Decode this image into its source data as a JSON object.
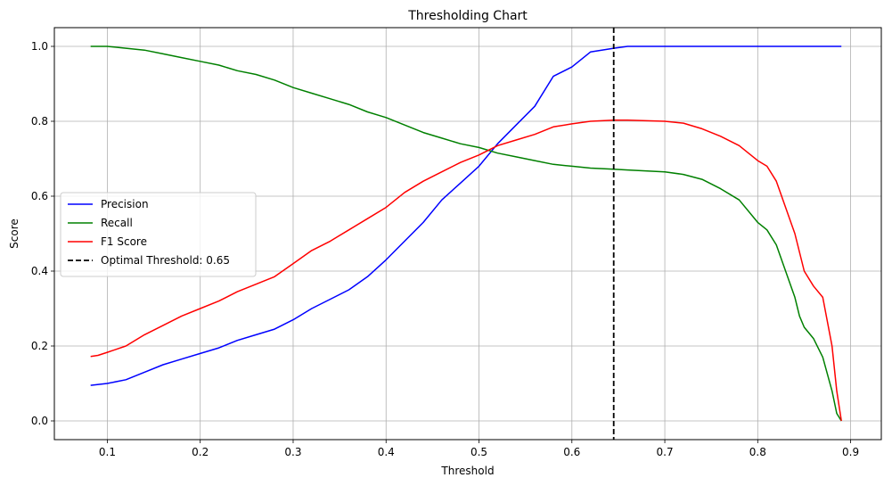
{
  "chart_data": {
    "type": "line",
    "title": "Thresholding Chart",
    "xlabel": "Threshold",
    "ylabel": "Score",
    "xlim": [
      0.043,
      0.933
    ],
    "ylim": [
      -0.05,
      1.05
    ],
    "x_ticks": [
      0.1,
      0.2,
      0.3,
      0.4,
      0.5,
      0.6,
      0.7,
      0.8,
      0.9
    ],
    "y_ticks": [
      0.0,
      0.2,
      0.4,
      0.6,
      0.8,
      1.0
    ],
    "x_tick_labels": [
      "0.1",
      "0.2",
      "0.3",
      "0.4",
      "0.5",
      "0.6",
      "0.7",
      "0.8",
      "0.9"
    ],
    "y_tick_labels": [
      "0.0",
      "0.2",
      "0.4",
      "0.6",
      "0.8",
      "1.0"
    ],
    "grid": true,
    "legend_position": "center-left",
    "series": [
      {
        "name": "Precision",
        "color": "#0000ff",
        "points": [
          [
            0.082,
            0.095
          ],
          [
            0.1,
            0.1
          ],
          [
            0.12,
            0.11
          ],
          [
            0.14,
            0.13
          ],
          [
            0.16,
            0.15
          ],
          [
            0.18,
            0.165
          ],
          [
            0.2,
            0.18
          ],
          [
            0.22,
            0.195
          ],
          [
            0.24,
            0.215
          ],
          [
            0.26,
            0.23
          ],
          [
            0.28,
            0.245
          ],
          [
            0.3,
            0.27
          ],
          [
            0.32,
            0.3
          ],
          [
            0.34,
            0.325
          ],
          [
            0.36,
            0.35
          ],
          [
            0.38,
            0.385
          ],
          [
            0.4,
            0.43
          ],
          [
            0.42,
            0.48
          ],
          [
            0.44,
            0.53
          ],
          [
            0.46,
            0.59
          ],
          [
            0.48,
            0.635
          ],
          [
            0.5,
            0.68
          ],
          [
            0.52,
            0.74
          ],
          [
            0.54,
            0.79
          ],
          [
            0.56,
            0.84
          ],
          [
            0.58,
            0.92
          ],
          [
            0.6,
            0.945
          ],
          [
            0.62,
            0.985
          ],
          [
            0.645,
            0.995
          ],
          [
            0.66,
            1.0
          ],
          [
            0.7,
            1.0
          ],
          [
            0.8,
            1.0
          ],
          [
            0.89,
            1.0
          ]
        ]
      },
      {
        "name": "Recall",
        "color": "#008000",
        "points": [
          [
            0.082,
            1.0
          ],
          [
            0.1,
            1.0
          ],
          [
            0.12,
            0.995
          ],
          [
            0.14,
            0.99
          ],
          [
            0.16,
            0.98
          ],
          [
            0.18,
            0.97
          ],
          [
            0.2,
            0.96
          ],
          [
            0.22,
            0.95
          ],
          [
            0.24,
            0.935
          ],
          [
            0.26,
            0.925
          ],
          [
            0.28,
            0.91
          ],
          [
            0.3,
            0.89
          ],
          [
            0.32,
            0.875
          ],
          [
            0.34,
            0.86
          ],
          [
            0.36,
            0.845
          ],
          [
            0.38,
            0.825
          ],
          [
            0.4,
            0.81
          ],
          [
            0.42,
            0.79
          ],
          [
            0.44,
            0.77
          ],
          [
            0.46,
            0.755
          ],
          [
            0.48,
            0.74
          ],
          [
            0.5,
            0.73
          ],
          [
            0.52,
            0.715
          ],
          [
            0.54,
            0.705
          ],
          [
            0.56,
            0.695
          ],
          [
            0.58,
            0.685
          ],
          [
            0.6,
            0.68
          ],
          [
            0.62,
            0.675
          ],
          [
            0.645,
            0.672
          ],
          [
            0.66,
            0.67
          ],
          [
            0.7,
            0.665
          ],
          [
            0.72,
            0.658
          ],
          [
            0.74,
            0.645
          ],
          [
            0.76,
            0.62
          ],
          [
            0.78,
            0.59
          ],
          [
            0.8,
            0.53
          ],
          [
            0.81,
            0.51
          ],
          [
            0.82,
            0.47
          ],
          [
            0.83,
            0.4
          ],
          [
            0.84,
            0.33
          ],
          [
            0.845,
            0.28
          ],
          [
            0.85,
            0.25
          ],
          [
            0.86,
            0.22
          ],
          [
            0.87,
            0.17
          ],
          [
            0.88,
            0.08
          ],
          [
            0.885,
            0.02
          ],
          [
            0.89,
            0.0
          ]
        ]
      },
      {
        "name": "F1 Score",
        "color": "#ff0000",
        "points": [
          [
            0.082,
            0.172
          ],
          [
            0.09,
            0.175
          ],
          [
            0.1,
            0.183
          ],
          [
            0.12,
            0.2
          ],
          [
            0.14,
            0.23
          ],
          [
            0.16,
            0.255
          ],
          [
            0.18,
            0.28
          ],
          [
            0.2,
            0.3
          ],
          [
            0.22,
            0.32
          ],
          [
            0.24,
            0.345
          ],
          [
            0.26,
            0.365
          ],
          [
            0.28,
            0.385
          ],
          [
            0.3,
            0.42
          ],
          [
            0.32,
            0.455
          ],
          [
            0.34,
            0.48
          ],
          [
            0.36,
            0.51
          ],
          [
            0.38,
            0.54
          ],
          [
            0.4,
            0.57
          ],
          [
            0.42,
            0.61
          ],
          [
            0.44,
            0.64
          ],
          [
            0.46,
            0.665
          ],
          [
            0.48,
            0.69
          ],
          [
            0.5,
            0.71
          ],
          [
            0.52,
            0.735
          ],
          [
            0.54,
            0.75
          ],
          [
            0.56,
            0.765
          ],
          [
            0.58,
            0.785
          ],
          [
            0.6,
            0.793
          ],
          [
            0.62,
            0.8
          ],
          [
            0.645,
            0.803
          ],
          [
            0.66,
            0.803
          ],
          [
            0.7,
            0.8
          ],
          [
            0.72,
            0.795
          ],
          [
            0.74,
            0.78
          ],
          [
            0.76,
            0.76
          ],
          [
            0.78,
            0.735
          ],
          [
            0.8,
            0.695
          ],
          [
            0.81,
            0.68
          ],
          [
            0.82,
            0.64
          ],
          [
            0.83,
            0.57
          ],
          [
            0.84,
            0.5
          ],
          [
            0.85,
            0.4
          ],
          [
            0.86,
            0.36
          ],
          [
            0.87,
            0.33
          ],
          [
            0.88,
            0.2
          ],
          [
            0.885,
            0.08
          ],
          [
            0.89,
            0.0
          ]
        ]
      }
    ],
    "threshold_line": {
      "label": "Optimal Threshold: 0.65",
      "x": 0.645,
      "color": "#000000",
      "style": "dashed"
    }
  }
}
